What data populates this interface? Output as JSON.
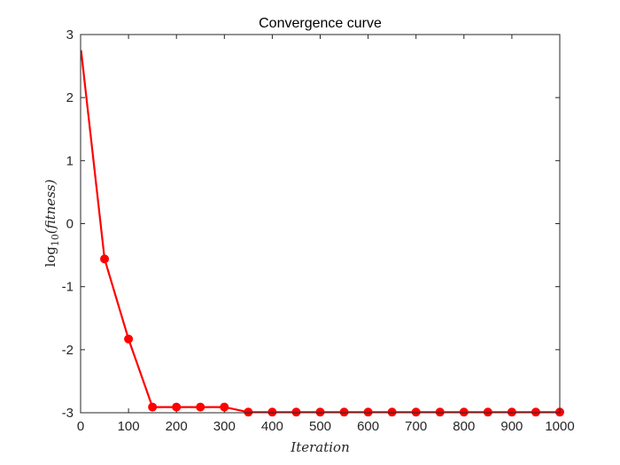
{
  "chart_data": {
    "type": "line",
    "title": "Convergence curve",
    "xlabel": "Iteration",
    "ylabel": {
      "func": "log",
      "subscript": "10",
      "argument": "(fitness)"
    },
    "xlim": [
      0,
      1000
    ],
    "ylim": [
      -3,
      3
    ],
    "xticks": [
      "0",
      "100",
      "200",
      "300",
      "400",
      "500",
      "600",
      "700",
      "800",
      "900",
      "1000"
    ],
    "yticks": [
      "3",
      "2",
      "1",
      "0",
      "-1",
      "-2",
      "-3"
    ],
    "grid": false,
    "legend": "none",
    "series": [
      {
        "color": "#ff0000",
        "marker": "circle",
        "marker_every": 50,
        "x": [
          1,
          50,
          100,
          150,
          200,
          250,
          300,
          350,
          400,
          450,
          500,
          550,
          600,
          650,
          700,
          750,
          800,
          850,
          900,
          950,
          1000
        ],
        "y": [
          2.75,
          -0.56,
          -1.83,
          -2.91,
          -2.91,
          -2.91,
          -2.91,
          -2.99,
          -2.99,
          -2.99,
          -2.99,
          -2.99,
          -2.99,
          -2.99,
          -2.99,
          -2.99,
          -2.99,
          -2.99,
          -2.99,
          -2.99,
          -2.99
        ]
      }
    ]
  }
}
